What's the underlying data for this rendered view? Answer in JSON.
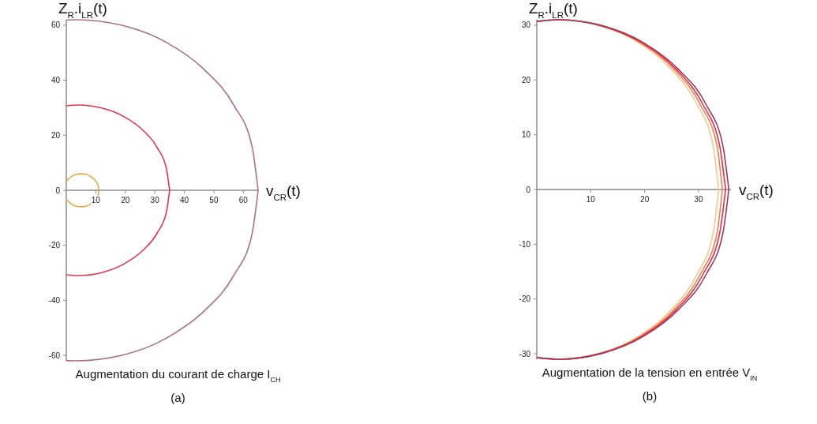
{
  "chart_data": [
    {
      "type": "line",
      "title": "Augmentation du courant de charge I$_{CH}$",
      "subtitle": "(a)",
      "xlabel": "v$_{CR}$(t)",
      "ylabel": "Z$_{R}$.i$_{LR}$(t)",
      "xlim": [
        0,
        65
      ],
      "ylim": [
        -62,
        62
      ],
      "xticks": [
        10,
        20,
        30,
        40,
        50,
        60
      ],
      "yticks": [
        -60,
        -40,
        -20,
        0,
        20,
        40,
        60
      ],
      "series": [
        {
          "color": "#e8a848",
          "x": [
            0,
            2,
            3.4,
            5,
            6.6,
            8,
            9.2,
            10.2,
            10.8,
            11
          ],
          "values": [
            3.3,
            5.2,
            5.8,
            6,
            5.8,
            5.2,
            4.2,
            3,
            1.6,
            0
          ]
        },
        {
          "color": "#e8a848",
          "x": [
            0,
            2,
            3.4,
            5,
            6.6,
            8,
            9.2,
            10.2,
            10.8,
            11
          ],
          "values": [
            -3.3,
            -5.2,
            -5.8,
            -6,
            -5.8,
            -5.2,
            -4.2,
            -3,
            -1.6,
            0
          ]
        },
        {
          "color": "#e03450",
          "x": [
            0,
            4,
            12,
            19.5,
            25.9,
            30.8,
            33.9,
            35
          ],
          "values": [
            30.7,
            31,
            29.9,
            26.8,
            21.9,
            15.5,
            8,
            0
          ]
        },
        {
          "color": "#e03450",
          "x": [
            0,
            4,
            12,
            19.5,
            25.9,
            30.8,
            33.9,
            35
          ],
          "values": [
            -30.7,
            -31,
            -29.9,
            -26.8,
            -21.9,
            -15.5,
            -8,
            0
          ]
        },
        {
          "color": "#a87282",
          "x": [
            0,
            3,
            19.1,
            34,
            46.8,
            56.7,
            62.9,
            65
          ],
          "values": [
            61.9,
            62,
            59.9,
            53.7,
            43.8,
            31,
            16.1,
            0
          ]
        },
        {
          "color": "#a87282",
          "x": [
            0,
            3,
            19.1,
            34,
            46.8,
            56.7,
            62.9,
            65
          ],
          "values": [
            -61.9,
            -62,
            -59.9,
            -53.7,
            -43.8,
            -31,
            -16.1,
            0
          ]
        }
      ]
    },
    {
      "type": "line",
      "title": "Augmentation de la tension en entrée V$_{IN}$",
      "subtitle": "(b)",
      "xlabel": "v$_{CR}$(t)",
      "ylabel": "Z$_{R}$.i$_{LR}$(t)",
      "xlim": [
        0,
        36
      ],
      "ylim": [
        -31,
        31
      ],
      "xticks": [
        10,
        20,
        30
      ],
      "yticks": [
        -30,
        -20,
        -10,
        0,
        10,
        20,
        30
      ],
      "series": [
        {
          "color": "#f8c890",
          "x": [
            0,
            4,
            11.7,
            18.9,
            25,
            29.7,
            32.7,
            33.7
          ],
          "values": [
            30.7,
            31,
            29.9,
            26.8,
            21.9,
            15.5,
            8,
            0
          ]
        },
        {
          "color": "#f8c890",
          "x": [
            0,
            4,
            11.7,
            18.9,
            25,
            29.7,
            32.7,
            33.7
          ],
          "values": [
            -30.7,
            -31,
            -29.9,
            -26.8,
            -21.9,
            -15.5,
            -8,
            0
          ]
        },
        {
          "color": "#f08058",
          "x": [
            0,
            4,
            11.9,
            19.2,
            25.5,
            30.3,
            33.4,
            34.4
          ],
          "values": [
            30.7,
            31,
            29.9,
            26.8,
            21.9,
            15.5,
            8,
            0
          ]
        },
        {
          "color": "#f08058",
          "x": [
            0,
            4,
            11.9,
            19.2,
            25.5,
            30.3,
            33.4,
            34.4
          ],
          "values": [
            -30.7,
            -31,
            -29.9,
            -26.8,
            -21.9,
            -15.5,
            -8,
            0
          ]
        },
        {
          "color": "#e03048",
          "x": [
            0,
            4,
            12,
            19.5,
            25.9,
            30.8,
            33.9,
            35
          ],
          "values": [
            30.7,
            31,
            29.9,
            26.8,
            21.9,
            15.5,
            8,
            0
          ]
        },
        {
          "color": "#e03048",
          "x": [
            0,
            4,
            12,
            19.5,
            25.9,
            30.8,
            33.9,
            35
          ],
          "values": [
            -30.7,
            -31,
            -29.9,
            -26.8,
            -21.9,
            -15.5,
            -8,
            0
          ]
        },
        {
          "color": "#9a3c5c",
          "x": [
            0,
            4,
            12.2,
            19.8,
            26.3,
            31.4,
            34.5,
            35.6
          ],
          "values": [
            30.7,
            31,
            29.9,
            26.8,
            21.9,
            15.5,
            8,
            0
          ]
        },
        {
          "color": "#9a3c5c",
          "x": [
            0,
            4,
            12.2,
            19.8,
            26.3,
            31.4,
            34.5,
            35.6
          ],
          "values": [
            -30.7,
            -31,
            -29.9,
            -26.8,
            -21.9,
            -15.5,
            -8,
            0
          ]
        }
      ]
    }
  ]
}
